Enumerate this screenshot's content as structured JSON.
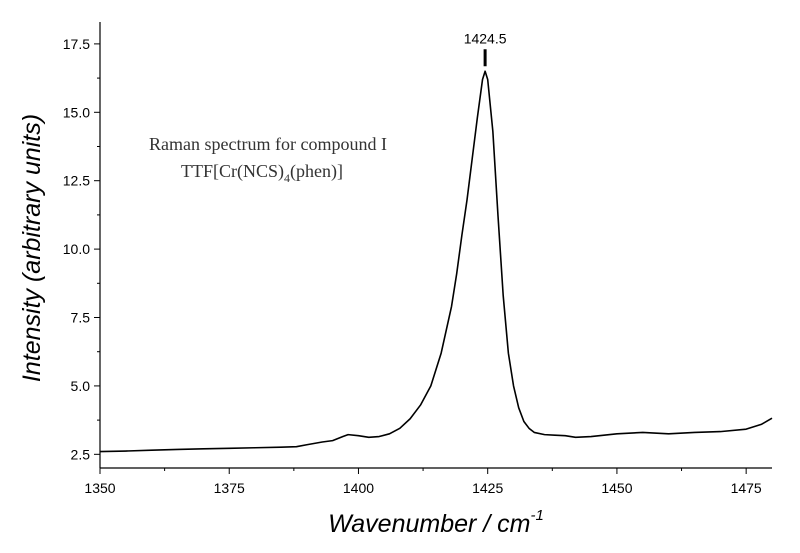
{
  "chart_data": {
    "type": "line",
    "xlabel": "Wavenumber / cm",
    "xlabel_superscript": "-1",
    "ylabel": "Intensity (arbitrary units)",
    "xlim": [
      1350,
      1480
    ],
    "ylim": [
      2.0,
      18.3
    ],
    "xticks": [
      "1350",
      "1375",
      "1400",
      "1425",
      "1450",
      "1475"
    ],
    "yticks": [
      "2.5",
      "5.0",
      "7.5",
      "10.0",
      "12.5",
      "15.0",
      "17.5"
    ],
    "grid": false,
    "annotation": {
      "line1": "Raman spectrum for compound I",
      "line2_prefix": "TTF[Cr(NCS)",
      "line2_subscript": "4",
      "line2_suffix": "(phen)]"
    },
    "peak": {
      "label": "1424.5",
      "x": 1424.5,
      "y": 16.5
    },
    "series": [
      {
        "x": [
          1350,
          1355,
          1360,
          1365,
          1370,
          1375,
          1380,
          1385,
          1388,
          1390,
          1393,
          1395,
          1397,
          1398,
          1400,
          1402,
          1404,
          1406,
          1408,
          1410,
          1412,
          1414,
          1416,
          1418,
          1419,
          1420,
          1421,
          1422,
          1423,
          1424,
          1424.5,
          1425,
          1426,
          1427,
          1428,
          1429,
          1430,
          1431,
          1432,
          1433,
          1434,
          1436,
          1438,
          1440,
          1442,
          1445,
          1450,
          1455,
          1460,
          1465,
          1470,
          1475,
          1478,
          1480
        ],
        "y": [
          2.6,
          2.62,
          2.65,
          2.68,
          2.7,
          2.72,
          2.74,
          2.76,
          2.78,
          2.85,
          2.95,
          3.0,
          3.15,
          3.22,
          3.18,
          3.12,
          3.15,
          3.25,
          3.45,
          3.8,
          4.3,
          5.0,
          6.2,
          7.9,
          9.1,
          10.5,
          11.8,
          13.3,
          14.8,
          16.2,
          16.5,
          16.2,
          14.3,
          11.2,
          8.3,
          6.2,
          5.0,
          4.2,
          3.7,
          3.45,
          3.3,
          3.22,
          3.2,
          3.18,
          3.12,
          3.15,
          3.25,
          3.3,
          3.25,
          3.3,
          3.33,
          3.42,
          3.6,
          3.82
        ]
      }
    ]
  }
}
